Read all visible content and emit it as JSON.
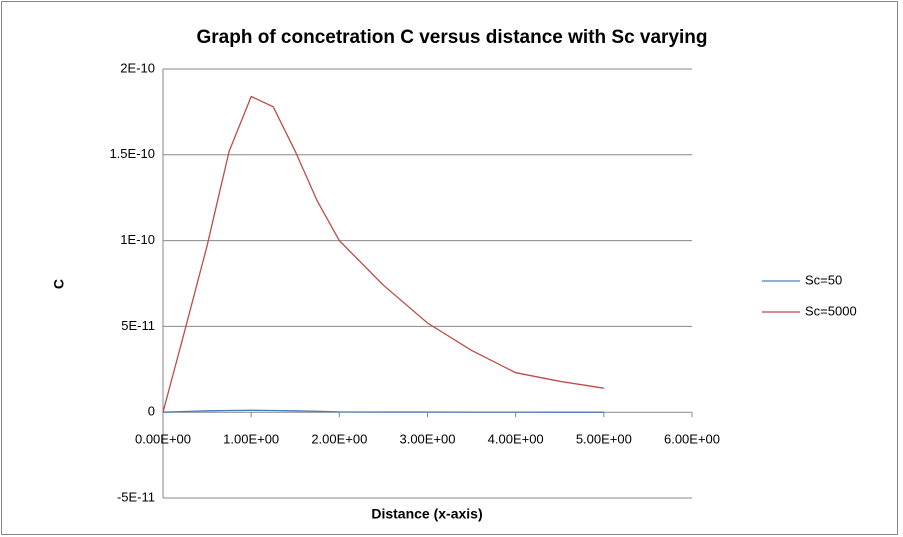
{
  "chart_data": {
    "type": "line",
    "title": "Graph of concetration C versus distance with Sc varying",
    "x_label": "Distance (x-axis)",
    "y_label": "C",
    "x": [
      0,
      0.25,
      0.5,
      0.75,
      1,
      1.25,
      1.5,
      1.75,
      2,
      2.5,
      3,
      3.5,
      4,
      4.5,
      5
    ],
    "series": [
      {
        "name": "Sc=50",
        "color": "#4a7ebb",
        "values": [
          0,
          4e-13,
          8e-13,
          1e-12,
          1.1e-12,
          1e-12,
          8e-13,
          5e-13,
          2e-13,
          1e-13,
          1e-13,
          5e-14,
          3e-14,
          2e-14,
          1e-14
        ]
      },
      {
        "name": "Sc=5000",
        "color": "#be4b48",
        "values": [
          0,
          4.8e-11,
          9.7e-11,
          1.52e-10,
          1.84e-10,
          1.78e-10,
          1.52e-10,
          1.23e-10,
          1e-10,
          7.4e-11,
          5.2e-11,
          3.6e-11,
          2.3e-11,
          1.8e-11,
          1.4e-11
        ]
      }
    ],
    "xlim": [
      0,
      6
    ],
    "xticks": [
      {
        "value": 0,
        "label": "0.00E+00"
      },
      {
        "value": 1,
        "label": "1.00E+00"
      },
      {
        "value": 2,
        "label": "2.00E+00"
      },
      {
        "value": 3,
        "label": "3.00E+00"
      },
      {
        "value": 4,
        "label": "4.00E+00"
      },
      {
        "value": 5,
        "label": "5.00E+00"
      },
      {
        "value": 6,
        "label": "6.00E+00"
      }
    ],
    "ylim": [
      -5e-11,
      2e-10
    ],
    "yticks": [
      {
        "value": -5e-11,
        "label": "-5E-11"
      },
      0,
      {
        "value": 5e-11,
        "label": "5E-11"
      },
      {
        "value": 1e-10,
        "label": "1E-10"
      },
      {
        "value": 1.5e-10,
        "label": "1.5E-10"
      },
      {
        "value": 2e-10,
        "label": "2E-10"
      }
    ],
    "grid": true,
    "legend": "right"
  }
}
